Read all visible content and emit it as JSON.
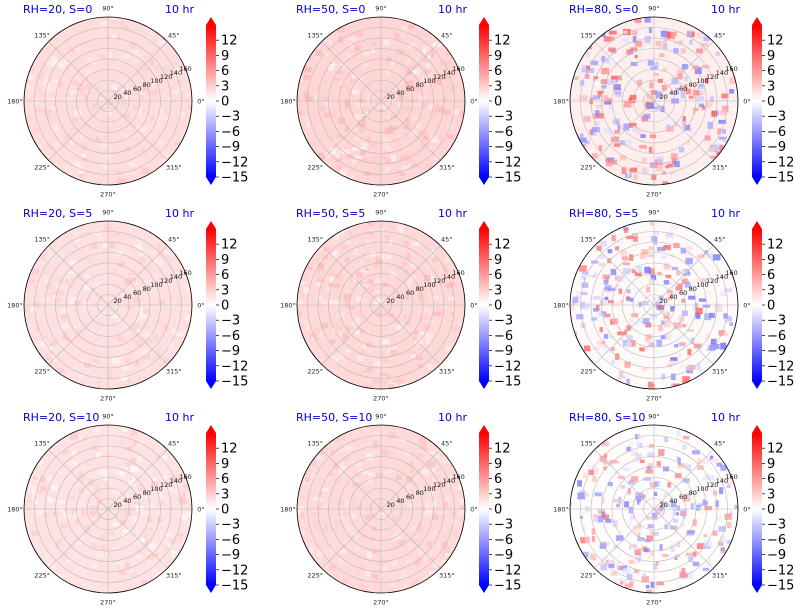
{
  "figure": {
    "time_label": "10 hr",
    "colorbar": {
      "ticks": [
        12,
        9,
        6,
        3,
        0,
        -3,
        -6,
        -9,
        -12,
        -15
      ],
      "tick_labels": [
        "12",
        "9",
        "6",
        "3",
        "0",
        "−3",
        "−6",
        "−9",
        "−12",
        "−15"
      ],
      "range": [
        -15,
        15
      ],
      "colors": {
        "min": "#0000ff",
        "mid": "#ffffff",
        "max": "#ff0000"
      }
    },
    "angle_labels": [
      "90°",
      "45°",
      "0°",
      "315°",
      "270°",
      "225°",
      "180°",
      "135°"
    ],
    "radius_labels": [
      "20",
      "40",
      "60",
      "80",
      "100",
      "120",
      "140",
      "160"
    ],
    "title_color": "#0000cc"
  },
  "chart_data": [
    {
      "type": "heatmap",
      "projection": "polar",
      "title": "RH=20, S=0",
      "rh": 20,
      "s": 0,
      "time": "10 hr",
      "rlim": [
        0,
        160
      ],
      "grid": true,
      "mean_value": 2.0,
      "variation": 0.9
    },
    {
      "type": "heatmap",
      "projection": "polar",
      "title": "RH=50, S=0",
      "rh": 50,
      "s": 0,
      "time": "10 hr",
      "rlim": [
        0,
        160
      ],
      "grid": true,
      "mean_value": 2.5,
      "variation": 1.2
    },
    {
      "type": "heatmap",
      "projection": "polar",
      "title": "RH=80, S=0",
      "rh": 80,
      "s": 0,
      "time": "10 hr",
      "rlim": [
        0,
        160
      ],
      "grid": true,
      "mean_value": 1.0,
      "variation": 6.0
    },
    {
      "type": "heatmap",
      "projection": "polar",
      "title": "RH=20, S=5",
      "rh": 20,
      "s": 5,
      "time": "10 hr",
      "rlim": [
        0,
        160
      ],
      "grid": true,
      "mean_value": 1.8,
      "variation": 0.9
    },
    {
      "type": "heatmap",
      "projection": "polar",
      "title": "RH=50, S=5",
      "rh": 50,
      "s": 5,
      "time": "10 hr",
      "rlim": [
        0,
        160
      ],
      "grid": true,
      "mean_value": 2.3,
      "variation": 1.2
    },
    {
      "type": "heatmap",
      "projection": "polar",
      "title": "RH=80, S=5",
      "rh": 80,
      "s": 5,
      "time": "10 hr",
      "rlim": [
        0,
        160
      ],
      "grid": true,
      "mean_value": 0.3,
      "variation": 6.0
    },
    {
      "type": "heatmap",
      "projection": "polar",
      "title": "RH=20, S=10",
      "rh": 20,
      "s": 10,
      "time": "10 hr",
      "rlim": [
        0,
        160
      ],
      "grid": true,
      "mean_value": 1.7,
      "variation": 1.0
    },
    {
      "type": "heatmap",
      "projection": "polar",
      "title": "RH=50, S=10",
      "rh": 50,
      "s": 10,
      "time": "10 hr",
      "rlim": [
        0,
        160
      ],
      "grid": true,
      "mean_value": 2.2,
      "variation": 1.0
    },
    {
      "type": "heatmap",
      "projection": "polar",
      "title": "RH=80, S=10",
      "rh": 80,
      "s": 10,
      "time": "10 hr",
      "rlim": [
        0,
        160
      ],
      "grid": true,
      "mean_value": 0.2,
      "variation": 5.5
    }
  ]
}
